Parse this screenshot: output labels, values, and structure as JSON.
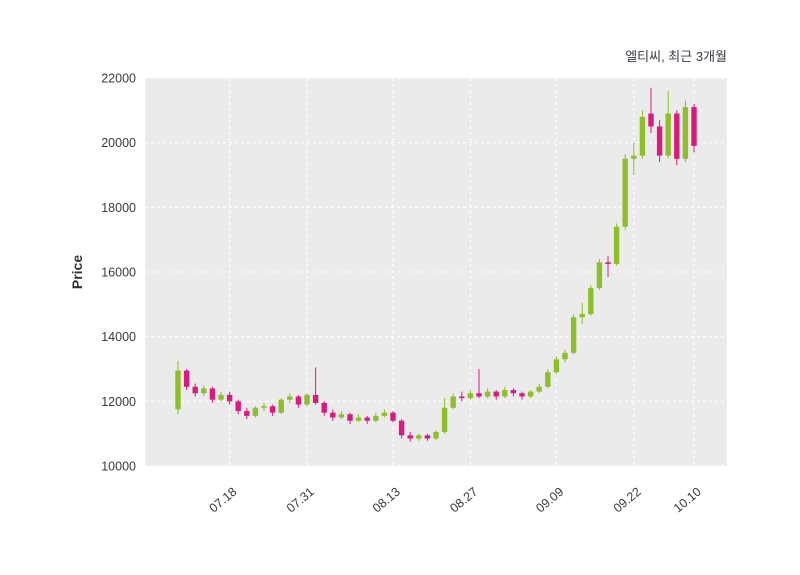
{
  "chart_data": {
    "type": "candlestick",
    "title": "엘티씨, 최근 3개월",
    "ylabel": "Price",
    "xlabel": "",
    "ylim": [
      10000,
      22000
    ],
    "yticks": [
      10000,
      12000,
      14000,
      16000,
      18000,
      20000,
      22000
    ],
    "xticks": [
      {
        "index": 6,
        "label": "07.18"
      },
      {
        "index": 15,
        "label": "07.31"
      },
      {
        "index": 25,
        "label": "08.13"
      },
      {
        "index": 34,
        "label": "08.27"
      },
      {
        "index": 44,
        "label": "09.09"
      },
      {
        "index": 53,
        "label": "09.22"
      },
      {
        "index": 60,
        "label": "10.10"
      }
    ],
    "legend": "none",
    "grid": "both-dashed-white",
    "plot_bg_color": "#ebebeb",
    "figure_bg_color": "#ffffff",
    "up_color": "#8ebe2a",
    "down_color": "#d81c7f",
    "ohlc": [
      [
        11750,
        13250,
        11600,
        12950
      ],
      [
        12950,
        13000,
        12350,
        12450
      ],
      [
        12450,
        12550,
        12150,
        12250
      ],
      [
        12250,
        12500,
        12150,
        12400
      ],
      [
        12400,
        12450,
        11950,
        12050
      ],
      [
        12050,
        12300,
        12000,
        12200
      ],
      [
        12200,
        12300,
        11900,
        12000
      ],
      [
        12000,
        12050,
        11600,
        11700
      ],
      [
        11700,
        11800,
        11450,
        11550
      ],
      [
        11550,
        11850,
        11500,
        11800
      ],
      [
        11800,
        11950,
        11700,
        11850
      ],
      [
        11850,
        11900,
        11550,
        11650
      ],
      [
        11650,
        12100,
        11600,
        12050
      ],
      [
        12050,
        12250,
        11950,
        12150
      ],
      [
        12150,
        12200,
        11800,
        11900
      ],
      [
        11900,
        12250,
        11850,
        12200
      ],
      [
        12200,
        13050,
        11900,
        11950
      ],
      [
        11950,
        12000,
        11550,
        11650
      ],
      [
        11650,
        11750,
        11400,
        11500
      ],
      [
        11500,
        11700,
        11450,
        11600
      ],
      [
        11600,
        11650,
        11300,
        11400
      ],
      [
        11400,
        11600,
        11350,
        11500
      ],
      [
        11500,
        11550,
        11300,
        11400
      ],
      [
        11400,
        11650,
        11350,
        11550
      ],
      [
        11550,
        11750,
        11500,
        11650
      ],
      [
        11650,
        11700,
        11350,
        11400
      ],
      [
        11400,
        11450,
        10850,
        10950
      ],
      [
        10950,
        11050,
        10750,
        10850
      ],
      [
        10850,
        11000,
        10780,
        10950
      ],
      [
        10950,
        11000,
        10780,
        10850
      ],
      [
        10850,
        11100,
        10800,
        11050
      ],
      [
        11050,
        12100,
        11000,
        11800
      ],
      [
        11800,
        12250,
        11750,
        12150
      ],
      [
        12150,
        12300,
        12000,
        12100
      ],
      [
        12100,
        12350,
        12050,
        12250
      ],
      [
        12250,
        13000,
        12100,
        12150
      ],
      [
        12150,
        12400,
        12100,
        12300
      ],
      [
        12300,
        12350,
        12050,
        12150
      ],
      [
        12150,
        12450,
        12100,
        12350
      ],
      [
        12350,
        12400,
        12150,
        12250
      ],
      [
        12250,
        12300,
        12050,
        12150
      ],
      [
        12150,
        12350,
        12100,
        12300
      ],
      [
        12300,
        12550,
        12250,
        12450
      ],
      [
        12450,
        13000,
        12400,
        12900
      ],
      [
        12900,
        13400,
        12850,
        13300
      ],
      [
        13300,
        13600,
        13200,
        13500
      ],
      [
        13500,
        14700,
        13450,
        14600
      ],
      [
        14600,
        15050,
        14400,
        14700
      ],
      [
        14700,
        15600,
        14650,
        15500
      ],
      [
        15500,
        16400,
        15450,
        16300
      ],
      [
        16300,
        16500,
        15850,
        16250
      ],
      [
        16250,
        17500,
        16200,
        17400
      ],
      [
        17400,
        19650,
        17300,
        19500
      ],
      [
        19500,
        20000,
        19000,
        19600
      ],
      [
        19600,
        21000,
        19500,
        20800
      ],
      [
        20900,
        21700,
        20300,
        20500
      ],
      [
        20500,
        20700,
        19400,
        19600
      ],
      [
        19600,
        21600,
        19500,
        20900
      ],
      [
        20900,
        21000,
        19300,
        19500
      ],
      [
        19500,
        21300,
        19400,
        21100
      ],
      [
        21100,
        21200,
        19700,
        19900
      ]
    ]
  }
}
